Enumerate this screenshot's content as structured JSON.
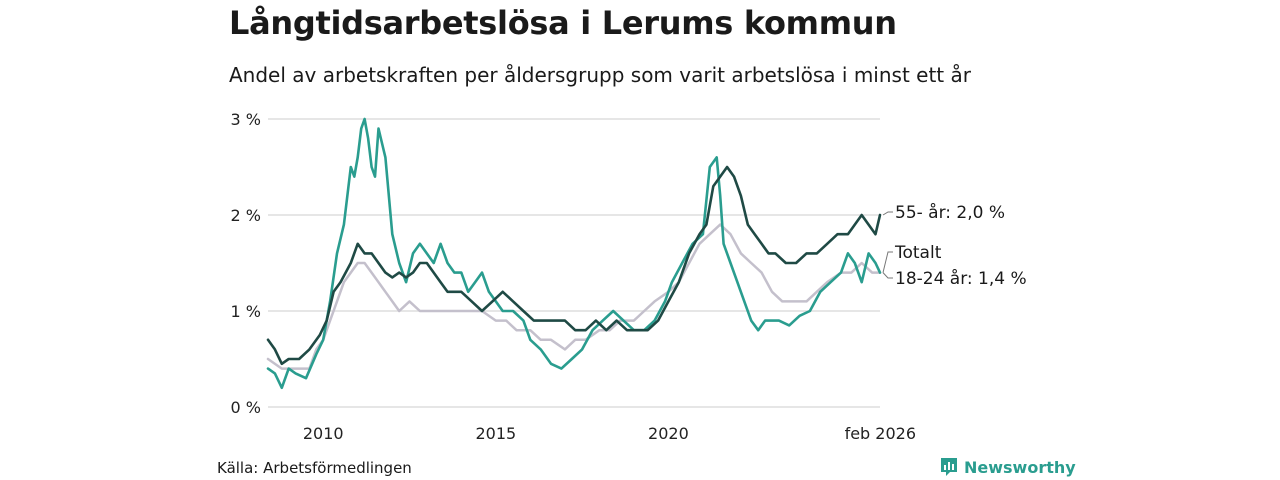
{
  "header": {
    "title": "Långtidsarbetslösa i Lerums kommun",
    "subtitle": "Andel av arbetskraften per åldersgrupp som varit arbetslösa i minst ett år"
  },
  "footer": {
    "source": "Källa: Arbetsförmedlingen",
    "brand": "Newsworthy"
  },
  "colors": {
    "age_55_plus": "#1f4a45",
    "age_18_24": "#2a9d8f",
    "total": "#c4c0cc",
    "grid": "#dddddd"
  },
  "chart_data": {
    "type": "line",
    "title": "Långtidsarbetslösa i Lerums kommun",
    "subtitle": "Andel av arbetskraften per åldersgrupp som varit arbetslösa i minst ett år",
    "xlabel": "",
    "ylabel": "",
    "xlim": [
      2008.4,
      2026.13
    ],
    "ylim": [
      0,
      3
    ],
    "y_ticks": [
      {
        "value": 0,
        "label": "0 %"
      },
      {
        "value": 1,
        "label": "1 %"
      },
      {
        "value": 2,
        "label": "2 %"
      },
      {
        "value": 3,
        "label": "3 %"
      }
    ],
    "x_ticks": [
      {
        "value": 2010,
        "label": "2010"
      },
      {
        "value": 2015,
        "label": "2015"
      },
      {
        "value": 2020,
        "label": "2020"
      },
      {
        "value": 2026.13,
        "label": "feb 2026"
      }
    ],
    "grid": true,
    "legend": "direct labels at line ends",
    "series": [
      {
        "name": "Totalt",
        "key": "total",
        "end_label": "Totalt",
        "x": [
          2008.4,
          2008.8,
          2009.3,
          2009.6,
          2009.8,
          2010.0,
          2010.2,
          2010.4,
          2010.6,
          2010.8,
          2011.0,
          2011.2,
          2011.4,
          2011.6,
          2011.8,
          2012.0,
          2012.2,
          2012.5,
          2012.8,
          2013.0,
          2013.3,
          2013.6,
          2014.0,
          2014.3,
          2014.6,
          2015.0,
          2015.3,
          2015.6,
          2016.0,
          2016.3,
          2016.6,
          2017.0,
          2017.3,
          2017.6,
          2018.0,
          2018.3,
          2018.6,
          2019.0,
          2019.3,
          2019.6,
          2020.0,
          2020.3,
          2020.6,
          2020.9,
          2021.2,
          2021.5,
          2021.8,
          2022.1,
          2022.4,
          2022.7,
          2023.0,
          2023.3,
          2023.6,
          2024.0,
          2024.3,
          2024.6,
          2025.0,
          2025.3,
          2025.6,
          2025.9,
          2026.13
        ],
        "values": [
          0.5,
          0.4,
          0.4,
          0.4,
          0.6,
          0.7,
          0.9,
          1.1,
          1.3,
          1.4,
          1.5,
          1.5,
          1.4,
          1.3,
          1.2,
          1.1,
          1.0,
          1.1,
          1.0,
          1.0,
          1.0,
          1.0,
          1.0,
          1.0,
          1.0,
          0.9,
          0.9,
          0.8,
          0.8,
          0.7,
          0.7,
          0.6,
          0.7,
          0.7,
          0.8,
          0.8,
          0.9,
          0.9,
          1.0,
          1.1,
          1.2,
          1.3,
          1.5,
          1.7,
          1.8,
          1.9,
          1.8,
          1.6,
          1.5,
          1.4,
          1.2,
          1.1,
          1.1,
          1.1,
          1.2,
          1.3,
          1.4,
          1.4,
          1.5,
          1.4,
          1.4
        ]
      },
      {
        "name": "18-24 år",
        "key": "age_18_24",
        "end_label": "18-24 år: 1,4 %",
        "x": [
          2008.4,
          2008.6,
          2008.8,
          2009.0,
          2009.2,
          2009.5,
          2009.8,
          2010.0,
          2010.2,
          2010.4,
          2010.6,
          2010.8,
          2010.9,
          2011.0,
          2011.1,
          2011.2,
          2011.3,
          2011.4,
          2011.5,
          2011.6,
          2011.8,
          2012.0,
          2012.2,
          2012.4,
          2012.6,
          2012.8,
          2013.0,
          2013.2,
          2013.4,
          2013.6,
          2013.8,
          2014.0,
          2014.2,
          2014.4,
          2014.6,
          2014.8,
          2015.0,
          2015.2,
          2015.5,
          2015.8,
          2016.0,
          2016.3,
          2016.6,
          2016.9,
          2017.2,
          2017.5,
          2017.8,
          2018.1,
          2018.4,
          2018.7,
          2019.0,
          2019.3,
          2019.6,
          2019.9,
          2020.1,
          2020.4,
          2020.7,
          2021.0,
          2021.2,
          2021.4,
          2021.5,
          2021.6,
          2021.8,
          2022.0,
          2022.2,
          2022.4,
          2022.6,
          2022.8,
          2023.0,
          2023.2,
          2023.5,
          2023.8,
          2024.1,
          2024.4,
          2024.7,
          2025.0,
          2025.2,
          2025.4,
          2025.6,
          2025.8,
          2026.0,
          2026.13
        ],
        "values": [
          0.4,
          0.35,
          0.2,
          0.4,
          0.35,
          0.3,
          0.55,
          0.7,
          1.1,
          1.6,
          1.9,
          2.5,
          2.4,
          2.6,
          2.9,
          3.0,
          2.8,
          2.5,
          2.4,
          2.9,
          2.6,
          1.8,
          1.5,
          1.3,
          1.6,
          1.7,
          1.6,
          1.5,
          1.7,
          1.5,
          1.4,
          1.4,
          1.2,
          1.3,
          1.4,
          1.2,
          1.1,
          1.0,
          1.0,
          0.9,
          0.7,
          0.6,
          0.45,
          0.4,
          0.5,
          0.6,
          0.8,
          0.9,
          1.0,
          0.9,
          0.8,
          0.8,
          0.9,
          1.1,
          1.3,
          1.5,
          1.7,
          1.8,
          2.5,
          2.6,
          2.2,
          1.7,
          1.5,
          1.3,
          1.1,
          0.9,
          0.8,
          0.9,
          0.9,
          0.9,
          0.85,
          0.95,
          1.0,
          1.2,
          1.3,
          1.4,
          1.6,
          1.5,
          1.3,
          1.6,
          1.5,
          1.4
        ]
      },
      {
        "name": "55- år",
        "key": "age_55_plus",
        "end_label": "55- år: 2,0 %",
        "x": [
          2008.4,
          2008.6,
          2008.8,
          2009.0,
          2009.3,
          2009.6,
          2009.9,
          2010.1,
          2010.3,
          2010.5,
          2010.8,
          2011.0,
          2011.2,
          2011.4,
          2011.6,
          2011.8,
          2012.0,
          2012.2,
          2012.4,
          2012.6,
          2012.8,
          2013.0,
          2013.2,
          2013.4,
          2013.6,
          2013.8,
          2014.0,
          2014.3,
          2014.6,
          2014.9,
          2015.2,
          2015.5,
          2015.8,
          2016.1,
          2016.4,
          2016.7,
          2017.0,
          2017.3,
          2017.6,
          2017.9,
          2018.2,
          2018.5,
          2018.8,
          2019.1,
          2019.4,
          2019.7,
          2020.0,
          2020.3,
          2020.6,
          2020.9,
          2021.1,
          2021.3,
          2021.5,
          2021.7,
          2021.9,
          2022.1,
          2022.3,
          2022.5,
          2022.7,
          2022.9,
          2023.1,
          2023.4,
          2023.7,
          2024.0,
          2024.3,
          2024.6,
          2024.9,
          2025.2,
          2025.4,
          2025.6,
          2025.8,
          2026.0,
          2026.13
        ],
        "values": [
          0.7,
          0.6,
          0.45,
          0.5,
          0.5,
          0.6,
          0.75,
          0.9,
          1.2,
          1.3,
          1.5,
          1.7,
          1.6,
          1.6,
          1.5,
          1.4,
          1.35,
          1.4,
          1.35,
          1.4,
          1.5,
          1.5,
          1.4,
          1.3,
          1.2,
          1.2,
          1.2,
          1.1,
          1.0,
          1.1,
          1.2,
          1.1,
          1.0,
          0.9,
          0.9,
          0.9,
          0.9,
          0.8,
          0.8,
          0.9,
          0.8,
          0.9,
          0.8,
          0.8,
          0.8,
          0.9,
          1.1,
          1.3,
          1.6,
          1.8,
          1.9,
          2.3,
          2.4,
          2.5,
          2.4,
          2.2,
          1.9,
          1.8,
          1.7,
          1.6,
          1.6,
          1.5,
          1.5,
          1.6,
          1.6,
          1.7,
          1.8,
          1.8,
          1.9,
          2.0,
          1.9,
          1.8,
          2.0
        ]
      }
    ]
  }
}
